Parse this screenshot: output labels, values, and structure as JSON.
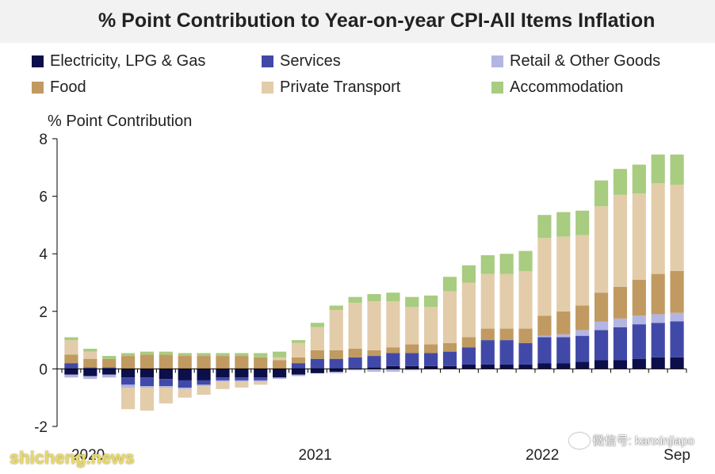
{
  "chart_data": {
    "type": "bar",
    "stacked": true,
    "title": "% Point Contribution to Year-on-year CPI-All Items Inflation",
    "ylabel": "% Point Contribution",
    "xlabel": "",
    "ylim": [
      -2,
      8
    ],
    "y_ticks": [
      -2,
      0,
      2,
      4,
      6,
      8
    ],
    "x_tick_labels": [
      {
        "label": "2020",
        "index": 0
      },
      {
        "label": "2021",
        "index": 12
      },
      {
        "label": "2022",
        "index": 24
      },
      {
        "label": "Sep",
        "index": 32
      }
    ],
    "grid": false,
    "legend_position": "top",
    "categories": [
      "Jan 2020",
      "Feb 2020",
      "Mar 2020",
      "Apr 2020",
      "May 2020",
      "Jun 2020",
      "Jul 2020",
      "Aug 2020",
      "Sep 2020",
      "Oct 2020",
      "Nov 2020",
      "Dec 2020",
      "Jan 2021",
      "Feb 2021",
      "Mar 2021",
      "Apr 2021",
      "May 2021",
      "Jun 2021",
      "Jul 2021",
      "Aug 2021",
      "Sep 2021",
      "Oct 2021",
      "Nov 2021",
      "Dec 2021",
      "Jan 2022",
      "Feb 2022",
      "Mar 2022",
      "Apr 2022",
      "May 2022",
      "Jun 2022",
      "Jul 2022",
      "Aug 2022",
      "Sep 2022"
    ],
    "series": [
      {
        "name": "Electricity, LPG & Gas",
        "color": "#0d0f4a",
        "values": [
          -0.2,
          -0.25,
          -0.2,
          -0.3,
          -0.3,
          -0.35,
          -0.4,
          -0.4,
          -0.3,
          -0.3,
          -0.3,
          -0.3,
          -0.2,
          -0.15,
          -0.1,
          0.0,
          0.05,
          0.1,
          0.1,
          0.1,
          0.1,
          0.15,
          0.15,
          0.15,
          0.15,
          0.2,
          0.2,
          0.25,
          0.3,
          0.3,
          0.35,
          0.4,
          0.4
        ]
      },
      {
        "name": "Services",
        "color": "#4149a8",
        "values": [
          0.2,
          0.05,
          0.05,
          -0.25,
          -0.3,
          -0.25,
          -0.25,
          -0.15,
          -0.1,
          -0.1,
          -0.1,
          0.0,
          0.2,
          0.35,
          0.35,
          0.4,
          0.4,
          0.45,
          0.45,
          0.45,
          0.5,
          0.6,
          0.85,
          0.85,
          0.75,
          0.9,
          0.9,
          0.9,
          1.05,
          1.15,
          1.2,
          1.2,
          1.25
        ]
      },
      {
        "name": "Retail & Other Goods",
        "color": "#b3b5e2",
        "values": [
          -0.1,
          -0.1,
          -0.1,
          -0.1,
          -0.05,
          -0.05,
          -0.05,
          -0.05,
          -0.05,
          -0.05,
          -0.05,
          -0.05,
          -0.05,
          0.0,
          -0.05,
          -0.05,
          -0.1,
          -0.1,
          -0.05,
          0.0,
          0.0,
          0.0,
          0.0,
          0.0,
          0.0,
          0.05,
          0.1,
          0.2,
          0.3,
          0.3,
          0.3,
          0.3,
          0.3
        ]
      },
      {
        "name": "Food",
        "color": "#c09a60",
        "values": [
          0.3,
          0.3,
          0.3,
          0.45,
          0.5,
          0.5,
          0.45,
          0.45,
          0.45,
          0.45,
          0.4,
          0.3,
          0.2,
          0.3,
          0.3,
          0.3,
          0.2,
          0.2,
          0.3,
          0.3,
          0.3,
          0.35,
          0.4,
          0.4,
          0.5,
          0.7,
          0.8,
          0.85,
          1.0,
          1.1,
          1.25,
          1.4,
          1.45
        ]
      },
      {
        "name": "Private Transport",
        "color": "#e3ccaa",
        "values": [
          0.5,
          0.25,
          0.0,
          -0.75,
          -0.8,
          -0.55,
          -0.3,
          -0.3,
          -0.25,
          -0.2,
          -0.1,
          0.1,
          0.5,
          0.8,
          1.4,
          1.6,
          1.7,
          1.6,
          1.3,
          1.3,
          1.8,
          1.9,
          1.9,
          1.9,
          2.0,
          2.7,
          2.6,
          2.45,
          3.0,
          3.2,
          3.0,
          3.15,
          3.0
        ]
      },
      {
        "name": "Accommodation",
        "color": "#a8cc80",
        "values": [
          0.1,
          0.1,
          0.1,
          0.1,
          0.1,
          0.1,
          0.1,
          0.1,
          0.1,
          0.1,
          0.15,
          0.2,
          0.1,
          0.15,
          0.15,
          0.2,
          0.25,
          0.3,
          0.35,
          0.4,
          0.5,
          0.6,
          0.65,
          0.7,
          0.7,
          0.8,
          0.85,
          0.85,
          0.9,
          0.9,
          1.0,
          1.0,
          1.05
        ]
      }
    ]
  },
  "watermarks": {
    "right": "微信号: kanxinjiapo",
    "left": "shicheng.news"
  }
}
